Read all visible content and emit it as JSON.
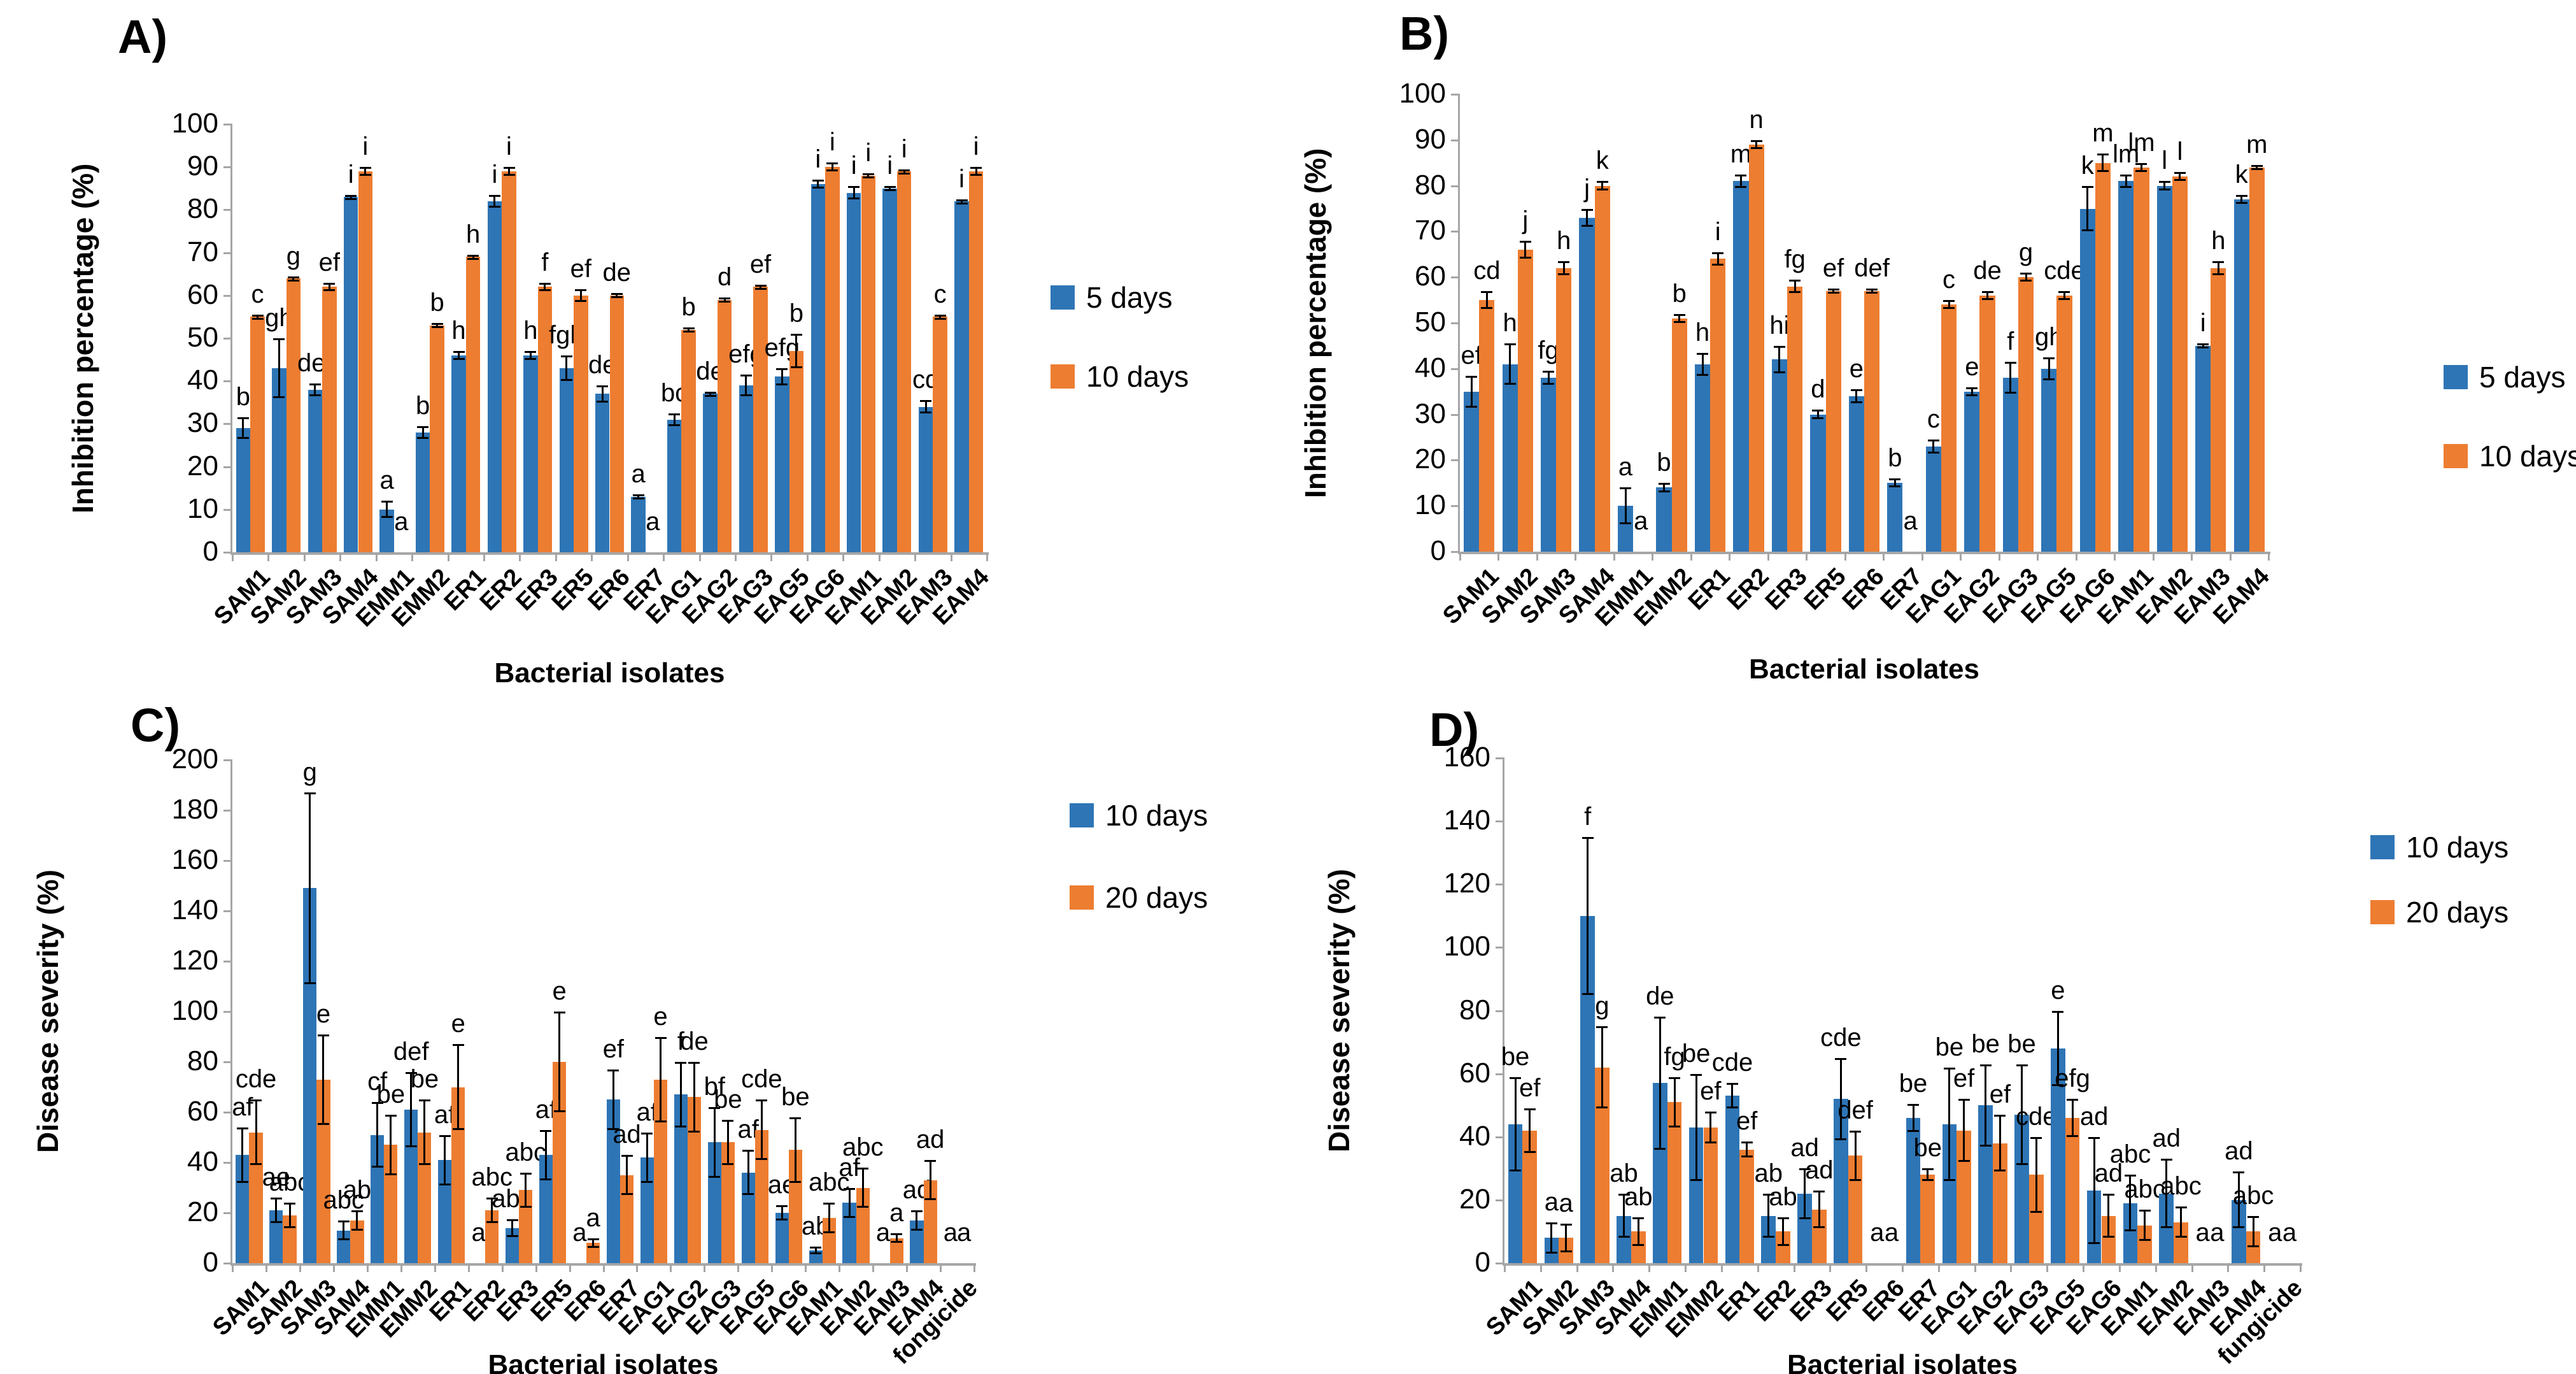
{
  "colors": {
    "series_blue": "#2E75B6",
    "series_orange": "#ED7D31",
    "axis": "#A6A6A6",
    "text": "#000000",
    "background": "#FFFFFF"
  },
  "chart_data": [
    {
      "type": "bar",
      "panel_label": "A)",
      "ylabel": "Inhibition percentage (%)",
      "xlabel": "Bacterial isolates",
      "ylim": [
        0,
        100
      ],
      "ytick_step": 10,
      "grid": false,
      "legend_position": "right-middle",
      "categories": [
        "SAM1",
        "SAM2",
        "SAM3",
        "SAM4",
        "EMM1",
        "EMM2",
        "ER1",
        "ER2",
        "ER3",
        "ER5",
        "ER6",
        "ER7",
        "EAG1",
        "EAG2",
        "EAG3",
        "EAG5",
        "EAG6",
        "EAM1",
        "EAM2",
        "EAM3",
        "EAM4"
      ],
      "series": [
        {
          "name": "5 days",
          "color": "series_blue",
          "values": [
            29,
            43,
            38,
            83,
            10,
            28,
            46,
            82,
            46,
            43,
            37,
            13,
            31,
            37,
            39,
            41,
            86,
            84,
            85,
            34,
            82
          ],
          "errors": [
            2.5,
            7,
            1.5,
            0.5,
            2,
            1.5,
            1,
            1.5,
            1,
            3,
            2,
            0.5,
            1.5,
            0.5,
            2.5,
            2,
            1,
            1.5,
            0.5,
            1.5,
            0.5
          ],
          "letters": [
            "b",
            "gh",
            "def",
            "i",
            "a",
            "b",
            "h",
            "i",
            "h",
            "fgh",
            "de",
            "a",
            "bc",
            "de",
            "efg",
            "efg",
            "i",
            "i",
            "i",
            "cd",
            "i"
          ]
        },
        {
          "name": "10 days",
          "color": "series_orange",
          "values": [
            55,
            64,
            62,
            89,
            0,
            53,
            69,
            89,
            62,
            60,
            60,
            0,
            52,
            59,
            62,
            47,
            90,
            88,
            89,
            55,
            89
          ],
          "errors": [
            0.5,
            0.5,
            1,
            1,
            0,
            0.5,
            0.5,
            1,
            1,
            1.5,
            0.5,
            0,
            0.5,
            0.5,
            0.5,
            4,
            1,
            0.5,
            0.5,
            0.5,
            1
          ],
          "letters": [
            "c",
            "g",
            "ef",
            "i",
            "a",
            "b",
            "h",
            "i",
            "f",
            "ef",
            "de",
            "a",
            "b",
            "d",
            "ef",
            "b",
            "i",
            "i",
            "i",
            "c",
            "i"
          ]
        }
      ]
    },
    {
      "type": "bar",
      "panel_label": "B)",
      "ylabel": "Inhibition percentage (%)",
      "xlabel": "Bacterial isolates",
      "ylim": [
        0,
        100
      ],
      "ytick_step": 10,
      "grid": false,
      "legend_position": "right-middle",
      "categories": [
        "SAM1",
        "SAM2",
        "SAM3",
        "SAM4",
        "EMM1",
        "EMM2",
        "ER1",
        "ER2",
        "ER3",
        "ER5",
        "ER6",
        "ER7",
        "EAG1",
        "EAG2",
        "EAG3",
        "EAG5",
        "EAG6",
        "EAM1",
        "EAM2",
        "EAM3",
        "EAM4"
      ],
      "series": [
        {
          "name": "5 days",
          "color": "series_blue",
          "values": [
            35,
            41,
            38,
            73,
            10,
            14,
            41,
            81,
            42,
            30,
            34,
            15,
            23,
            35,
            38,
            40,
            75,
            81,
            80,
            45,
            77
          ],
          "errors": [
            3.5,
            4.5,
            1.5,
            2,
            4,
            1,
            2.5,
            1.5,
            3,
            1,
            1.5,
            1,
            1.5,
            1,
            3.5,
            2.5,
            5,
            1.5,
            1,
            0.5,
            1
          ],
          "letters": [
            "ef",
            "h",
            "fg",
            "j",
            "a",
            "b",
            "h",
            "m",
            "hi",
            "d",
            "e",
            "b",
            "c",
            "e",
            "f",
            "gh",
            "k",
            "lm",
            "l",
            "i",
            "k"
          ]
        },
        {
          "name": "10 days",
          "color": "series_orange",
          "values": [
            55,
            66,
            62,
            80,
            0,
            51,
            64,
            89,
            58,
            57,
            57,
            0,
            54,
            56,
            60,
            56,
            85,
            84,
            82,
            62,
            84
          ],
          "errors": [
            2,
            2,
            1.5,
            1,
            0,
            1,
            1.5,
            1,
            1.5,
            0.5,
            0.5,
            0,
            1,
            1,
            1,
            1,
            2,
            1,
            1,
            1.5,
            0.5
          ],
          "letters": [
            "cd",
            "j",
            "h",
            "k",
            "a",
            "b",
            "i",
            "n",
            "fg",
            "ef",
            "def",
            "a",
            "c",
            "de",
            "g",
            "cde",
            "m",
            "lm",
            "l",
            "h",
            "m"
          ]
        }
      ]
    },
    {
      "type": "bar",
      "panel_label": "C)",
      "ylabel": "Disease severity (%)",
      "xlabel": "Bacterial isolates",
      "ylim": [
        0,
        200
      ],
      "ytick_step": 20,
      "grid": false,
      "legend_position": "right-top",
      "categories": [
        "SAM1",
        "SAM2",
        "SAM3",
        "SAM4",
        "EMM1",
        "EMM2",
        "ER1",
        "ER2",
        "ER3",
        "ER5",
        "ER6",
        "ER7",
        "EAG1",
        "EAG2",
        "EAG3",
        "EAG5",
        "EAG6",
        "EAM1",
        "EAM2",
        "EAM3",
        "EAM4",
        "fongicide"
      ],
      "series": [
        {
          "name": "10 days",
          "color": "series_blue",
          "values": [
            43,
            21,
            149,
            13,
            51,
            61,
            41,
            0,
            14,
            43,
            0,
            65,
            42,
            67,
            48,
            36,
            20,
            5,
            24,
            0,
            17,
            0
          ],
          "errors": [
            11,
            5,
            38,
            4,
            13,
            15,
            10,
            0,
            3.5,
            10,
            0,
            12,
            10,
            13,
            14,
            9,
            3,
            1.5,
            6,
            0,
            4,
            0
          ],
          "letters": [
            "af",
            "ae",
            "g",
            "abc",
            "cf",
            "def",
            "af",
            "a",
            "abc",
            "af",
            "a",
            "ef",
            "af",
            "f",
            "bf",
            "af",
            "ae",
            "ab",
            "af",
            "a",
            "ad",
            "a"
          ]
        },
        {
          "name": "20 days",
          "color": "series_orange",
          "values": [
            52,
            19,
            73,
            17,
            47,
            52,
            70,
            21,
            29,
            80,
            8,
            35,
            73,
            66,
            48,
            53,
            45,
            18,
            30,
            10,
            33,
            0
          ],
          "errors": [
            13,
            5,
            18,
            4,
            12,
            13,
            17,
            5,
            7,
            20,
            2,
            8,
            17,
            14,
            9,
            12,
            13,
            6,
            8,
            2,
            8,
            0
          ],
          "letters": [
            "cde",
            "abc",
            "e",
            "ab",
            "be",
            "be",
            "e",
            "abc",
            "abc",
            "e",
            "a",
            "ad",
            "e",
            "de",
            "be",
            "cde",
            "be",
            "abc",
            "abc",
            "a",
            "ad",
            "a"
          ]
        }
      ]
    },
    {
      "type": "bar",
      "panel_label": "D)",
      "ylabel": "Disease severity (%)",
      "xlabel": "Bacterial isolates",
      "ylim": [
        0,
        160
      ],
      "ytick_step": 20,
      "grid": false,
      "legend_position": "right-top",
      "categories": [
        "SAM1",
        "SAM2",
        "SAM3",
        "SAM4",
        "EMM1",
        "EMM2",
        "ER1",
        "ER2",
        "ER3",
        "ER5",
        "ER6",
        "ER7",
        "EAG1",
        "EAG2",
        "EAG3",
        "EAG5",
        "EAG6",
        "EAM1",
        "EAM2",
        "EAM3",
        "EAM4",
        "fungicide"
      ],
      "series": [
        {
          "name": "10 days",
          "color": "series_blue",
          "values": [
            44,
            8,
            110,
            15,
            57,
            43,
            53,
            15,
            22,
            52,
            0,
            46,
            44,
            50,
            47,
            68,
            23,
            19,
            22,
            0,
            20,
            0
          ],
          "errors": [
            15,
            5,
            25,
            7,
            21,
            17,
            4,
            7,
            8,
            13,
            0,
            4.5,
            18,
            13,
            16,
            12,
            17,
            9,
            11,
            0,
            9,
            0
          ],
          "letters": [
            "be",
            "a",
            "f",
            "ab",
            "de",
            "be",
            "cde",
            "ab",
            "ad",
            "cde",
            "a",
            "be",
            "be",
            "be",
            "be",
            "e",
            "ad",
            "abc",
            "ad",
            "a",
            "ad",
            "a"
          ]
        },
        {
          "name": "20 days",
          "color": "series_orange",
          "values": [
            42,
            8,
            62,
            10,
            51,
            43,
            36,
            10,
            17,
            34,
            0,
            28,
            42,
            38,
            28,
            46,
            15,
            12,
            13,
            0,
            10,
            0
          ],
          "errors": [
            7,
            4.5,
            13,
            4.5,
            8,
            5,
            2.5,
            4.5,
            6,
            8,
            0,
            2,
            10,
            9,
            12,
            6,
            7,
            5,
            5,
            0,
            5,
            0
          ],
          "letters": [
            "ef",
            "a",
            "g",
            "ab",
            "fg",
            "ef",
            "ef",
            "ab",
            "ad",
            "def",
            "a",
            "be",
            "ef",
            "ef",
            "cde",
            "efg",
            "ad",
            "abc",
            "abc",
            "a",
            "abc",
            "a"
          ]
        }
      ]
    }
  ]
}
